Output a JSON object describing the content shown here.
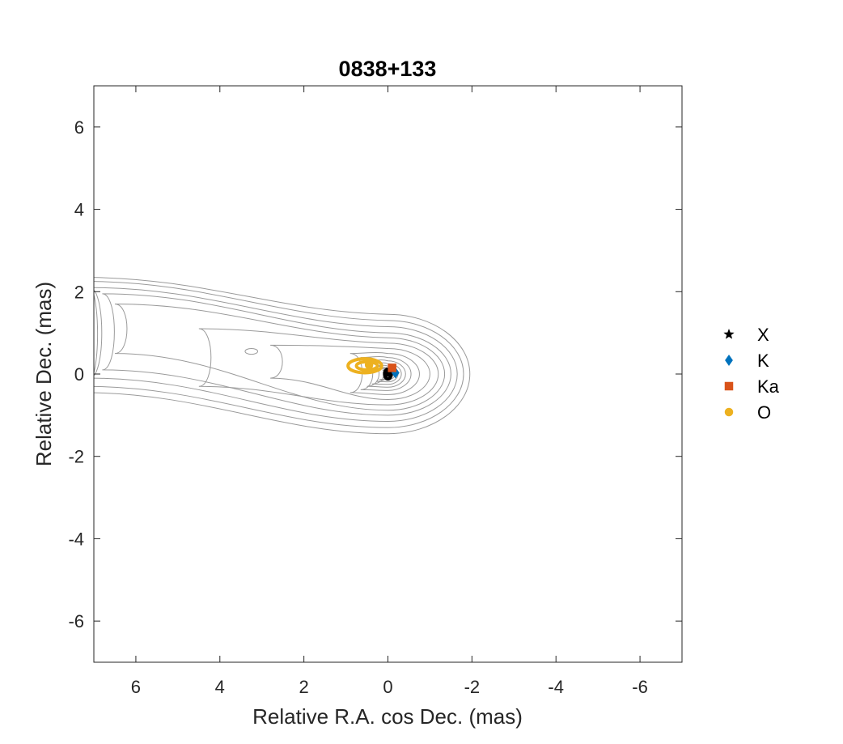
{
  "chart_data": {
    "type": "scatter",
    "title": "0838+133",
    "xlabel": "Relative R.A. cos Dec. (mas)",
    "ylabel": "Relative Dec. (mas)",
    "xlim": [
      7,
      -7
    ],
    "ylim": [
      -7,
      7
    ],
    "x_reversed": true,
    "xticks": [
      6,
      4,
      2,
      0,
      -2,
      -4,
      -6
    ],
    "yticks": [
      6,
      4,
      2,
      0,
      -2,
      -4,
      -6
    ],
    "xtick_labels": [
      "6",
      "4",
      "2",
      "0",
      "-2",
      "-4",
      "-6"
    ],
    "ytick_labels": [
      "6",
      "4",
      "2",
      "0",
      "-2",
      "-4",
      "-6"
    ],
    "grid": false,
    "legend_placement": "right-outside",
    "series": [
      {
        "name": "X",
        "marker": "star",
        "color": "#000000",
        "x": [
          0.0
        ],
        "y": [
          0.0
        ]
      },
      {
        "name": "K",
        "marker": "diamond",
        "color": "#0072BD",
        "x": [
          -0.18
        ],
        "y": [
          0.03
        ]
      },
      {
        "name": "Ka",
        "marker": "square",
        "color": "#D95319",
        "x": [
          -0.1
        ],
        "y": [
          0.15
        ]
      },
      {
        "name": "O",
        "marker": "circle",
        "color": "#EDB120",
        "x": [
          0.45
        ],
        "y": [
          0.22
        ]
      }
    ],
    "ellipses": [
      {
        "series": "O",
        "cx": 0.55,
        "cy": 0.2,
        "rx": 0.4,
        "ry": 0.17
      },
      {
        "series": "O",
        "cx": 0.5,
        "cy": 0.2,
        "rx": 0.25,
        "ry": 0.1
      },
      {
        "series": "X",
        "cx": 0.0,
        "cy": 0.0,
        "rx": 0.08,
        "ry": 0.12
      }
    ],
    "contours": {
      "color": "#9a9a9a",
      "core": [
        0.0,
        0.0
      ],
      "levels": [
        {
          "xe": 1.95,
          "ye": 1.45,
          "xw": 7.3,
          "ywn": 2.35,
          "yws": -0.45
        },
        {
          "xe": 1.8,
          "ye": 1.3,
          "xw": 7.2,
          "ywn": 2.25,
          "yws": -0.3
        },
        {
          "xe": 1.65,
          "ye": 1.15,
          "xw": 7.1,
          "ywn": 2.1,
          "yws": -0.1
        },
        {
          "xe": 1.5,
          "ye": 1.0,
          "xw": 6.8,
          "ywn": 1.95,
          "yws": 0.1
        },
        {
          "xe": 1.35,
          "ye": 0.88,
          "xw": 6.5,
          "ywn": 1.7,
          "yws": 0.5
        },
        {
          "xe": 1.2,
          "ye": 0.75,
          "xw": 4.5,
          "ywn": 1.1,
          "yws": -0.3
        },
        {
          "xe": 1.0,
          "ye": 0.62,
          "xw": 2.8,
          "ywn": 0.7,
          "yws": -0.1
        },
        {
          "xe": 0.75,
          "ye": 0.5,
          "xw": 0.9,
          "ywn": 0.5,
          "yws": -0.45
        },
        {
          "xe": 0.55,
          "ye": 0.4,
          "xw": 0.65,
          "ywn": 0.4,
          "yws": -0.38
        },
        {
          "xe": 0.42,
          "ye": 0.32,
          "xw": 0.5,
          "ywn": 0.32,
          "yws": -0.3
        },
        {
          "xe": 0.32,
          "ye": 0.25,
          "xw": 0.38,
          "ywn": 0.25,
          "yws": -0.24
        },
        {
          "xe": 0.24,
          "ye": 0.19,
          "xw": 0.28,
          "ywn": 0.19,
          "yws": -0.18
        },
        {
          "xe": 0.17,
          "ye": 0.14,
          "xw": 0.2,
          "ywn": 0.14,
          "yws": -0.13
        },
        {
          "xe": 0.11,
          "ye": 0.09,
          "xw": 0.13,
          "ywn": 0.09,
          "yws": -0.08
        }
      ],
      "islands": [
        {
          "cx": 3.25,
          "cy": 0.55,
          "rx": 0.15,
          "ry": 0.07
        }
      ]
    }
  }
}
